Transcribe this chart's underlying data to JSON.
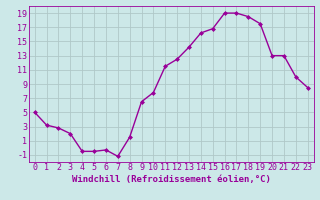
{
  "x": [
    0,
    1,
    2,
    3,
    4,
    5,
    6,
    7,
    8,
    9,
    10,
    11,
    12,
    13,
    14,
    15,
    16,
    17,
    18,
    19,
    20,
    21,
    22,
    23
  ],
  "y": [
    5,
    3.2,
    2.8,
    2.0,
    -0.5,
    -0.5,
    -0.3,
    -1.2,
    1.5,
    6.5,
    7.8,
    11.5,
    12.5,
    14.2,
    16.2,
    16.8,
    19.0,
    19.0,
    18.5,
    17.5,
    13.0,
    13.0,
    10.0,
    8.5
  ],
  "line_color": "#990099",
  "marker": "D",
  "marker_size": 2.0,
  "bg_color": "#cce8e8",
  "grid_color": "#b0c8c8",
  "xlabel": "Windchill (Refroidissement éolien,°C)",
  "xlim": [
    -0.5,
    23.5
  ],
  "ylim": [
    -2,
    20
  ],
  "yticks": [
    -1,
    1,
    3,
    5,
    7,
    9,
    11,
    13,
    15,
    17,
    19
  ],
  "xticks": [
    0,
    1,
    2,
    3,
    4,
    5,
    6,
    7,
    8,
    9,
    10,
    11,
    12,
    13,
    14,
    15,
    16,
    17,
    18,
    19,
    20,
    21,
    22,
    23
  ],
  "xlabel_fontsize": 6.5,
  "tick_fontsize": 6.0,
  "line_width": 1.0
}
